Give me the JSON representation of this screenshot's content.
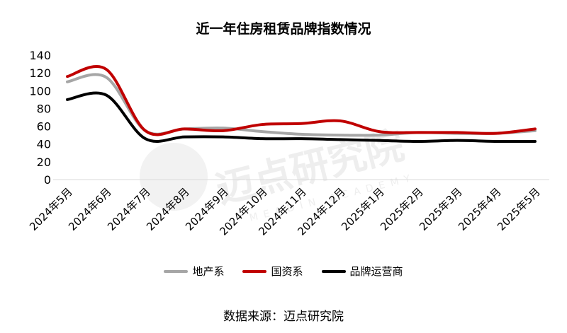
{
  "source_text": "数据来源：迈点研究院",
  "watermark": {
    "text": "迈点研究院",
    "subtext": "MEADIN ACADEMY"
  },
  "chart_data": {
    "type": "line",
    "title": "近一年住房租赁品牌指数情况",
    "categories": [
      "2024年5月",
      "2024年6月",
      "2024年7月",
      "2024年8月",
      "2024年9月",
      "2024年10月",
      "2024年11月",
      "2024年12月",
      "2025年1月",
      "2025年2月",
      "2025年3月",
      "2025年4月",
      "2025年5月"
    ],
    "ylim": [
      0,
      140
    ],
    "yticks": [
      0,
      20,
      40,
      60,
      80,
      100,
      120,
      140
    ],
    "grid": false,
    "legend_position": "bottom",
    "series": [
      {
        "name": "地产系",
        "color": "#a6a6a6",
        "values": [
          110,
          115,
          55,
          57,
          58,
          54,
          51,
          50,
          50,
          53,
          52,
          52,
          55
        ]
      },
      {
        "name": "国资系",
        "color": "#c00000",
        "values": [
          116,
          124,
          55,
          57,
          55,
          62,
          63,
          66,
          54,
          53,
          53,
          52,
          57
        ]
      },
      {
        "name": "品牌运营商",
        "color": "#000000",
        "values": [
          90,
          95,
          46,
          48,
          48,
          46,
          46,
          45,
          44,
          43,
          44,
          43,
          43
        ]
      }
    ]
  }
}
